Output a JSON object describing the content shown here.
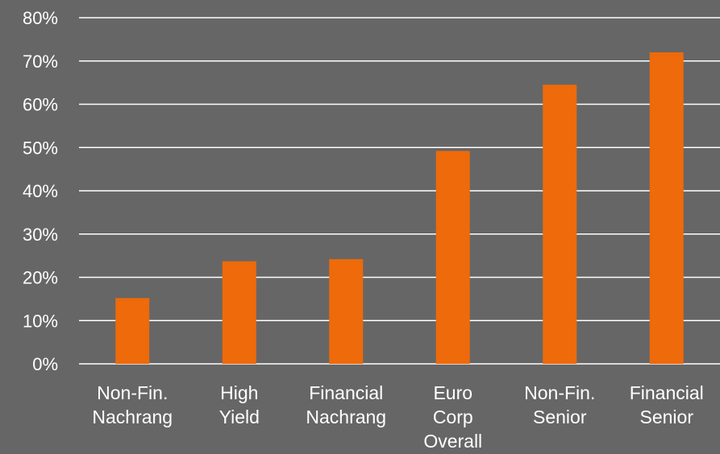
{
  "chart_data": {
    "type": "bar",
    "title": "",
    "xlabel": "",
    "ylabel": "",
    "categories": [
      [
        "Non-Fin.",
        "Nachrang"
      ],
      [
        "High",
        "Yield"
      ],
      [
        "Financial",
        "Nachrang"
      ],
      [
        "Euro",
        "Corp",
        "Overall"
      ],
      [
        "Non-Fin.",
        "Senior"
      ],
      [
        "Financial",
        "Senior"
      ]
    ],
    "values": [
      15.2,
      23.7,
      24.2,
      49.2,
      64.5,
      72.0
    ],
    "ylim": [
      0,
      80
    ],
    "ytick_step": 10,
    "ytick_labels": [
      "0%",
      "10%",
      "20%",
      "30%",
      "40%",
      "50%",
      "60%",
      "70%",
      "80%"
    ],
    "grid": true,
    "legend": "none",
    "colors": {
      "background": "#666666",
      "bar": "#EE6A0A",
      "grid": "#ffffff",
      "text": "#ffffff"
    }
  }
}
